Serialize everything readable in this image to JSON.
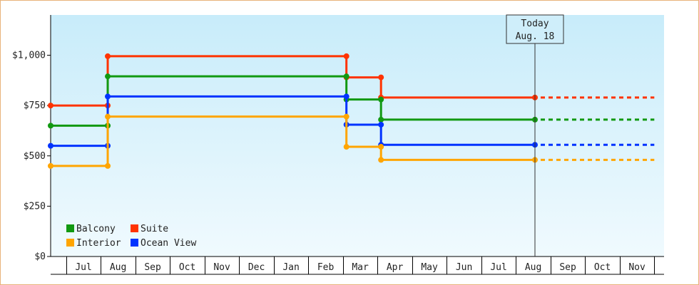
{
  "chart_data": {
    "type": "line",
    "title": "",
    "xlabel": "",
    "ylabel": "",
    "ylim": [
      0,
      1200
    ],
    "yticks": [
      0,
      250,
      500,
      750,
      1000
    ],
    "ytick_labels": [
      "$0",
      "$250",
      "$500",
      "$750",
      "$1,000"
    ],
    "months": [
      "Jul",
      "Aug",
      "Sep",
      "Oct",
      "Nov",
      "Dec",
      "Jan",
      "Feb",
      "Mar",
      "Apr",
      "May",
      "Jun",
      "Jul",
      "Aug",
      "Sep",
      "Oct",
      "Nov"
    ],
    "x_start": 0.0,
    "x_end": 17.45,
    "today": {
      "x": 14.0,
      "line1": "Today",
      "line2": "Aug. 18"
    },
    "colors": {
      "Balcony": "#119911",
      "Suite": "#ff3300",
      "Interior": "#ffa500",
      "Ocean View": "#0033ff",
      "background_top": "#c8ecfa",
      "background_bottom": "#f0fafe"
    },
    "legend": {
      "placement": "bottom-left",
      "entries": [
        "Balcony",
        "Suite",
        "Interior",
        "Ocean View"
      ]
    },
    "series": [
      {
        "name": "Suite",
        "points": [
          [
            0.0,
            750
          ],
          [
            1.65,
            750
          ],
          [
            1.65,
            995
          ],
          [
            8.55,
            995
          ],
          [
            8.55,
            890
          ],
          [
            9.55,
            890
          ],
          [
            9.55,
            790
          ],
          [
            14.0,
            790
          ]
        ],
        "projected_to": 17.45
      },
      {
        "name": "Balcony",
        "points": [
          [
            0.0,
            650
          ],
          [
            1.65,
            650
          ],
          [
            1.65,
            895
          ],
          [
            8.55,
            895
          ],
          [
            8.55,
            780
          ],
          [
            9.55,
            780
          ],
          [
            9.55,
            680
          ],
          [
            14.0,
            680
          ]
        ],
        "projected_to": 17.45
      },
      {
        "name": "Ocean View",
        "points": [
          [
            0.0,
            550
          ],
          [
            1.65,
            550
          ],
          [
            1.65,
            795
          ],
          [
            8.55,
            795
          ],
          [
            8.55,
            655
          ],
          [
            9.55,
            655
          ],
          [
            9.55,
            555
          ],
          [
            14.0,
            555
          ]
        ],
        "projected_to": 17.45
      },
      {
        "name": "Interior",
        "points": [
          [
            0.0,
            450
          ],
          [
            1.65,
            450
          ],
          [
            1.65,
            695
          ],
          [
            8.55,
            695
          ],
          [
            8.55,
            545
          ],
          [
            9.55,
            545
          ],
          [
            9.55,
            480
          ],
          [
            14.0,
            480
          ]
        ],
        "projected_to": 17.45
      }
    ]
  }
}
